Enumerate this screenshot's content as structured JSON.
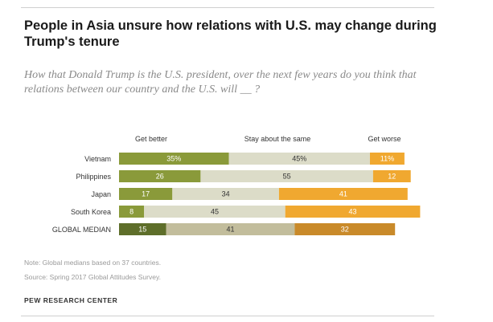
{
  "title": "People in Asia unsure how relations with U.S. may change during Trump's tenure",
  "subtitle": "How that Donald Trump is the U.S. president, over the next few years do you think that relations between our country and the U.S. will __ ?",
  "note": "Note: Global medians based on 37 countries.",
  "source": "Source: Spring 2017 Global Attitudes Survey.",
  "org": "PEW RESEARCH CENTER",
  "colors": {
    "better": "#8a9a3a",
    "same": "#dcdcc8",
    "worse": "#f0a830",
    "median_better": "#5e6e2a",
    "median_same": "#c2bd9c",
    "median_worse": "#c98a2a"
  },
  "chart_data": {
    "type": "bar",
    "stacked": true,
    "orientation": "horizontal",
    "categories": [
      "Vietnam",
      "Philippines",
      "Japan",
      "South Korea",
      "GLOBAL MEDIAN"
    ],
    "series": [
      {
        "name": "Get better",
        "values": [
          35,
          26,
          17,
          8,
          15
        ]
      },
      {
        "name": "Stay about the same",
        "values": [
          45,
          55,
          34,
          45,
          41
        ]
      },
      {
        "name": "Get worse",
        "values": [
          11,
          12,
          41,
          43,
          32
        ]
      }
    ],
    "value_labels": [
      [
        "35%",
        "45%",
        "11%"
      ],
      [
        "26",
        "55",
        "12"
      ],
      [
        "17",
        "34",
        "41"
      ],
      [
        "8",
        "45",
        "43"
      ],
      [
        "15",
        "41",
        "32"
      ]
    ],
    "legend_placement": "top (column headers)"
  }
}
